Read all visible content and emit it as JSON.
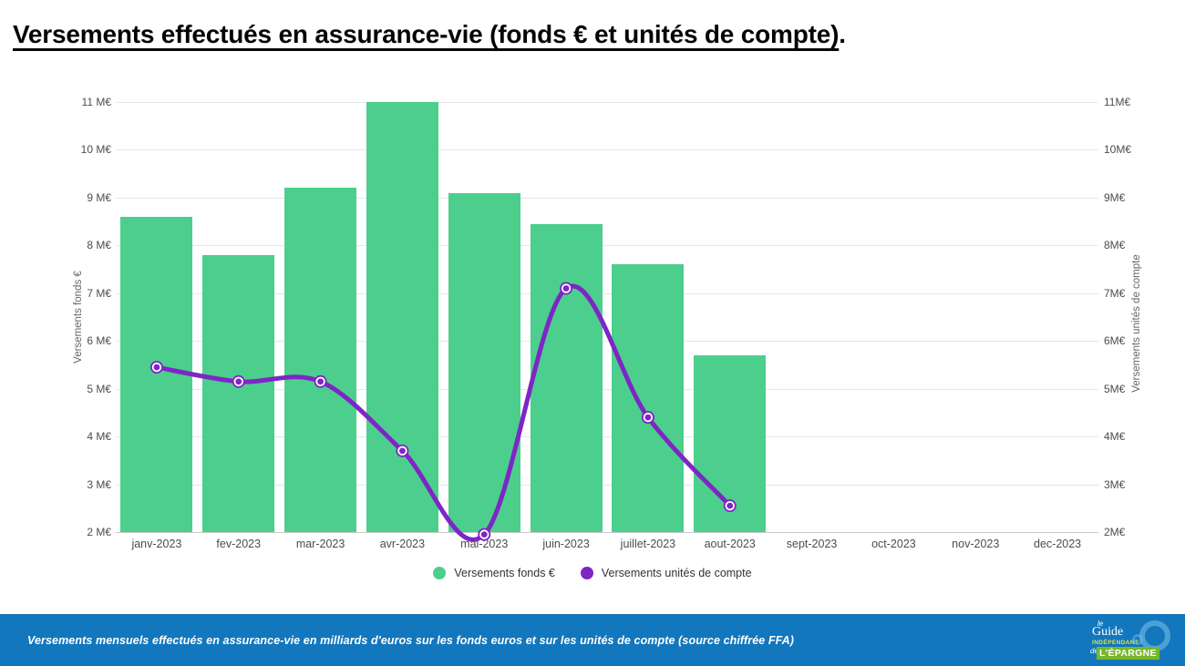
{
  "title": {
    "text": "Versements effectués en assurance-vie (fonds € et unités de compte)",
    "suffix": "."
  },
  "chart_data": {
    "type": "bar+line",
    "categories": [
      "janv-2023",
      "fev-2023",
      "mar-2023",
      "avr-2023",
      "mai-2023",
      "juin-2023",
      "juillet-2023",
      "aout-2023",
      "sept-2023",
      "oct-2023",
      "nov-2023",
      "dec-2023"
    ],
    "series": [
      {
        "name": "Versements fonds €",
        "type": "bar",
        "color": "#4ccf8d",
        "values": [
          8.6,
          7.8,
          9.2,
          11.0,
          9.1,
          8.45,
          7.6,
          5.7,
          null,
          null,
          null,
          null
        ]
      },
      {
        "name": "Versements unités de compte",
        "type": "line",
        "color": "#7e26c5",
        "values": [
          5.45,
          5.15,
          5.15,
          3.7,
          1.95,
          7.1,
          4.4,
          2.55,
          null,
          null,
          null,
          null
        ]
      }
    ],
    "ylim": [
      2,
      11
    ],
    "grid": "horizontal",
    "legend_position": "bottom",
    "left_axis": {
      "title": "Versements fonds €",
      "ticks": [
        "11 M€",
        "10 M€",
        "9 M€",
        "8 M€",
        "7 M€",
        "6 M€",
        "5 M€",
        "4 M€",
        "3 M€",
        "2 M€"
      ]
    },
    "right_axis": {
      "title": "Versements unités de compte",
      "ticks": [
        "11M€",
        "10M€",
        "9M€",
        "8M€",
        "7M€",
        "6M€",
        "5M€",
        "4M€",
        "3M€",
        "2M€"
      ]
    }
  },
  "footer": {
    "caption": "Versements mensuels effectués en assurance-vie en milliards d'euros sur les fonds euros et sur les unités de compte (source chiffrée FFA)",
    "logo": {
      "le": "le",
      "guide": "Guide",
      "independant": "INDÉPENDANT",
      "de": "de",
      "epargne": "L'ÉPARGNE"
    }
  }
}
